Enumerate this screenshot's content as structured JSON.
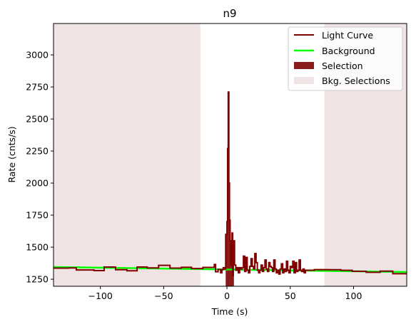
{
  "chart_data": {
    "type": "line",
    "title": "n9",
    "xlabel": "Time (s)",
    "ylabel": "Rate (cnts/s)",
    "xlim": [
      -137,
      142
    ],
    "ylim": [
      1195,
      3245
    ],
    "x_ticks": [
      -100,
      -50,
      0,
      50,
      100
    ],
    "y_ticks": [
      1250,
      1500,
      1750,
      2000,
      2250,
      2500,
      2750,
      3000
    ],
    "grid": false,
    "legend_position": "top-right",
    "legend": [
      "Light Curve",
      "Background",
      "Selection",
      "Bkg. Selections"
    ],
    "colors": {
      "light_curve": "#800000",
      "background": "#00ff00",
      "selection": "#8b1a1a",
      "bkg_selection": "#efe3e3"
    },
    "bkg_selections": [
      [
        -137,
        -21
      ],
      [
        77,
        142
      ]
    ],
    "selection": [
      -1,
      5.5
    ],
    "background_line": {
      "x": [
        -137,
        142
      ],
      "y": [
        1345,
        1306
      ]
    },
    "light_curve": {
      "edges": [
        -137,
        -125,
        -119,
        -105,
        -97,
        -88,
        -79,
        -71,
        -63,
        -54,
        -45,
        -36,
        -28,
        -19,
        -10,
        -9,
        -7,
        -5,
        -4,
        -3,
        -2,
        -1,
        0,
        0.5,
        1,
        1.5,
        2,
        2.5,
        3,
        3.5,
        4,
        4.5,
        5,
        5.5,
        6,
        7,
        8,
        9,
        10,
        11,
        12,
        13,
        14,
        15,
        16,
        17,
        18,
        19,
        20,
        21,
        22,
        23,
        24,
        25,
        26,
        27,
        28,
        29,
        30,
        31,
        32,
        33,
        34,
        35,
        36,
        37,
        38,
        39,
        40,
        41,
        42,
        43,
        44,
        45,
        46,
        47,
        48,
        49,
        50,
        51,
        52,
        53,
        54,
        55,
        56,
        57,
        58,
        59,
        60,
        61,
        62,
        69,
        79,
        90,
        99,
        110,
        121,
        131,
        142
      ],
      "values": [
        1337,
        1338,
        1322,
        1317,
        1345,
        1324,
        1316,
        1345,
        1338,
        1358,
        1337,
        1343,
        1333,
        1342,
        1365,
        1308,
        1326,
        1300,
        1325,
        1340,
        1330,
        1600,
        1700,
        2270,
        2710,
        2000,
        1710,
        1550,
        1360,
        1530,
        1610,
        1280,
        1390,
        1550,
        1360,
        1320,
        1340,
        1300,
        1340,
        1330,
        1340,
        1430,
        1310,
        1420,
        1320,
        1300,
        1350,
        1410,
        1350,
        1330,
        1450,
        1380,
        1320,
        1300,
        1320,
        1360,
        1310,
        1340,
        1400,
        1330,
        1310,
        1380,
        1350,
        1340,
        1310,
        1400,
        1330,
        1300,
        1320,
        1290,
        1330,
        1370,
        1300,
        1330,
        1310,
        1390,
        1320,
        1300,
        1350,
        1340,
        1390,
        1300,
        1380,
        1310,
        1320,
        1400,
        1320,
        1310,
        1330,
        1300,
        1320,
        1325,
        1324,
        1319,
        1312,
        1304,
        1313,
        1293
      ]
    }
  }
}
